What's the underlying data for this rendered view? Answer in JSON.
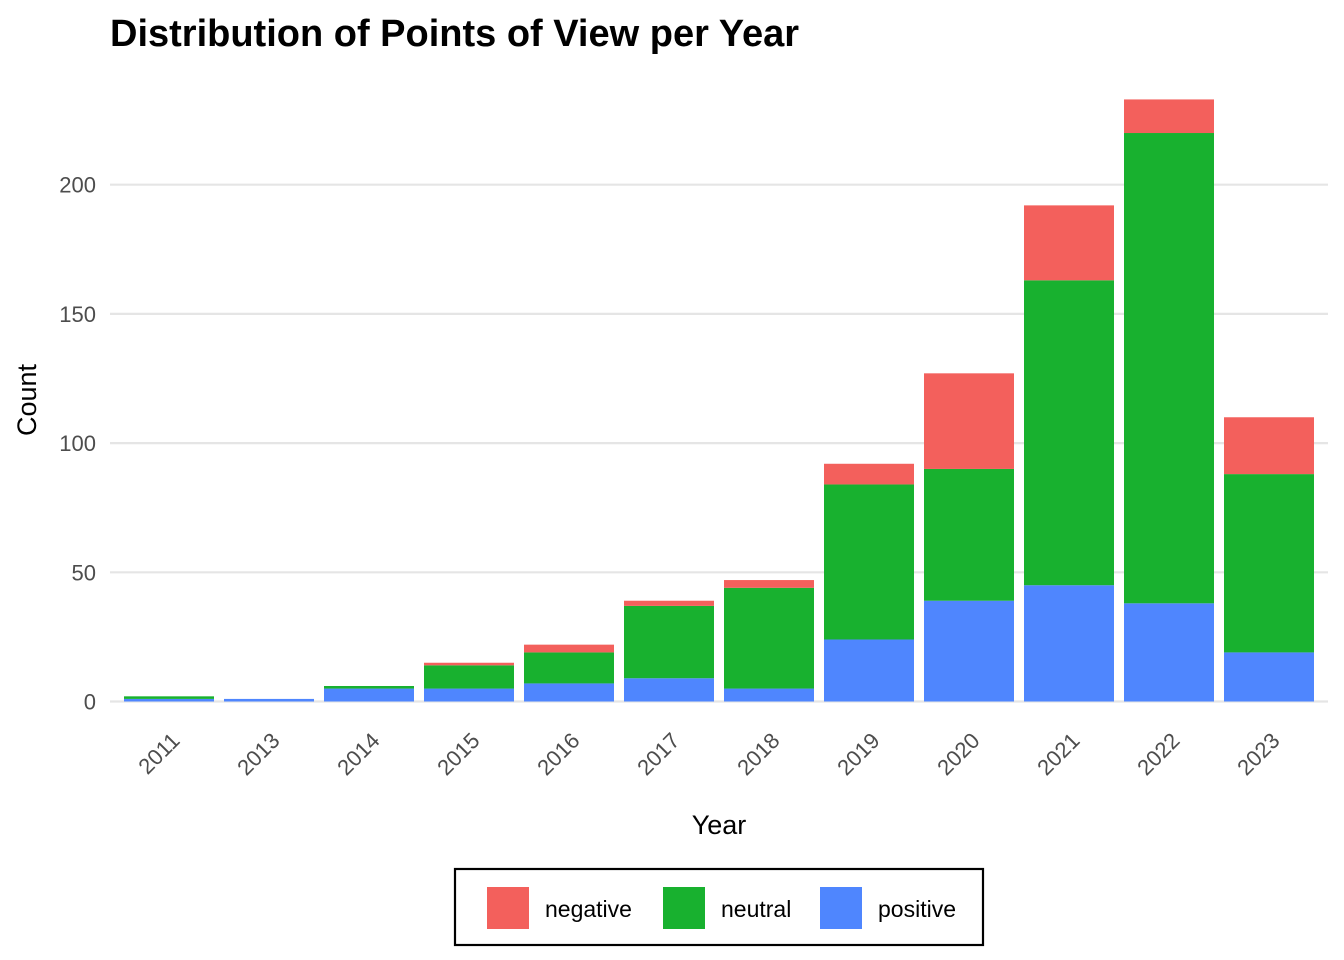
{
  "chart_data": {
    "type": "bar",
    "stacked": true,
    "title": "Distribution of Points of View per Year",
    "xlabel": "Year",
    "ylabel": "Count",
    "categories": [
      "2011",
      "2013",
      "2014",
      "2015",
      "2016",
      "2017",
      "2018",
      "2019",
      "2020",
      "2021",
      "2022",
      "2023"
    ],
    "series": [
      {
        "name": "positive",
        "color": "#4f86fe",
        "values": [
          1,
          1,
          5,
          5,
          7,
          9,
          5,
          24,
          39,
          45,
          38,
          19
        ]
      },
      {
        "name": "neutral",
        "color": "#18b12f",
        "values": [
          1,
          0,
          1,
          9,
          12,
          28,
          39,
          60,
          51,
          118,
          182,
          69
        ]
      },
      {
        "name": "negative",
        "color": "#f3605c",
        "values": [
          0,
          0,
          0,
          1,
          3,
          2,
          3,
          8,
          37,
          29,
          13,
          22
        ]
      }
    ],
    "stack_order_bottom_to_top": [
      "positive",
      "neutral",
      "negative"
    ],
    "yticks": [
      0,
      50,
      100,
      150,
      200
    ],
    "ylim": [
      0,
      240
    ],
    "grid": "horizontal",
    "legend": {
      "placement": "bottom",
      "entries": [
        "negative",
        "neutral",
        "positive"
      ]
    }
  }
}
